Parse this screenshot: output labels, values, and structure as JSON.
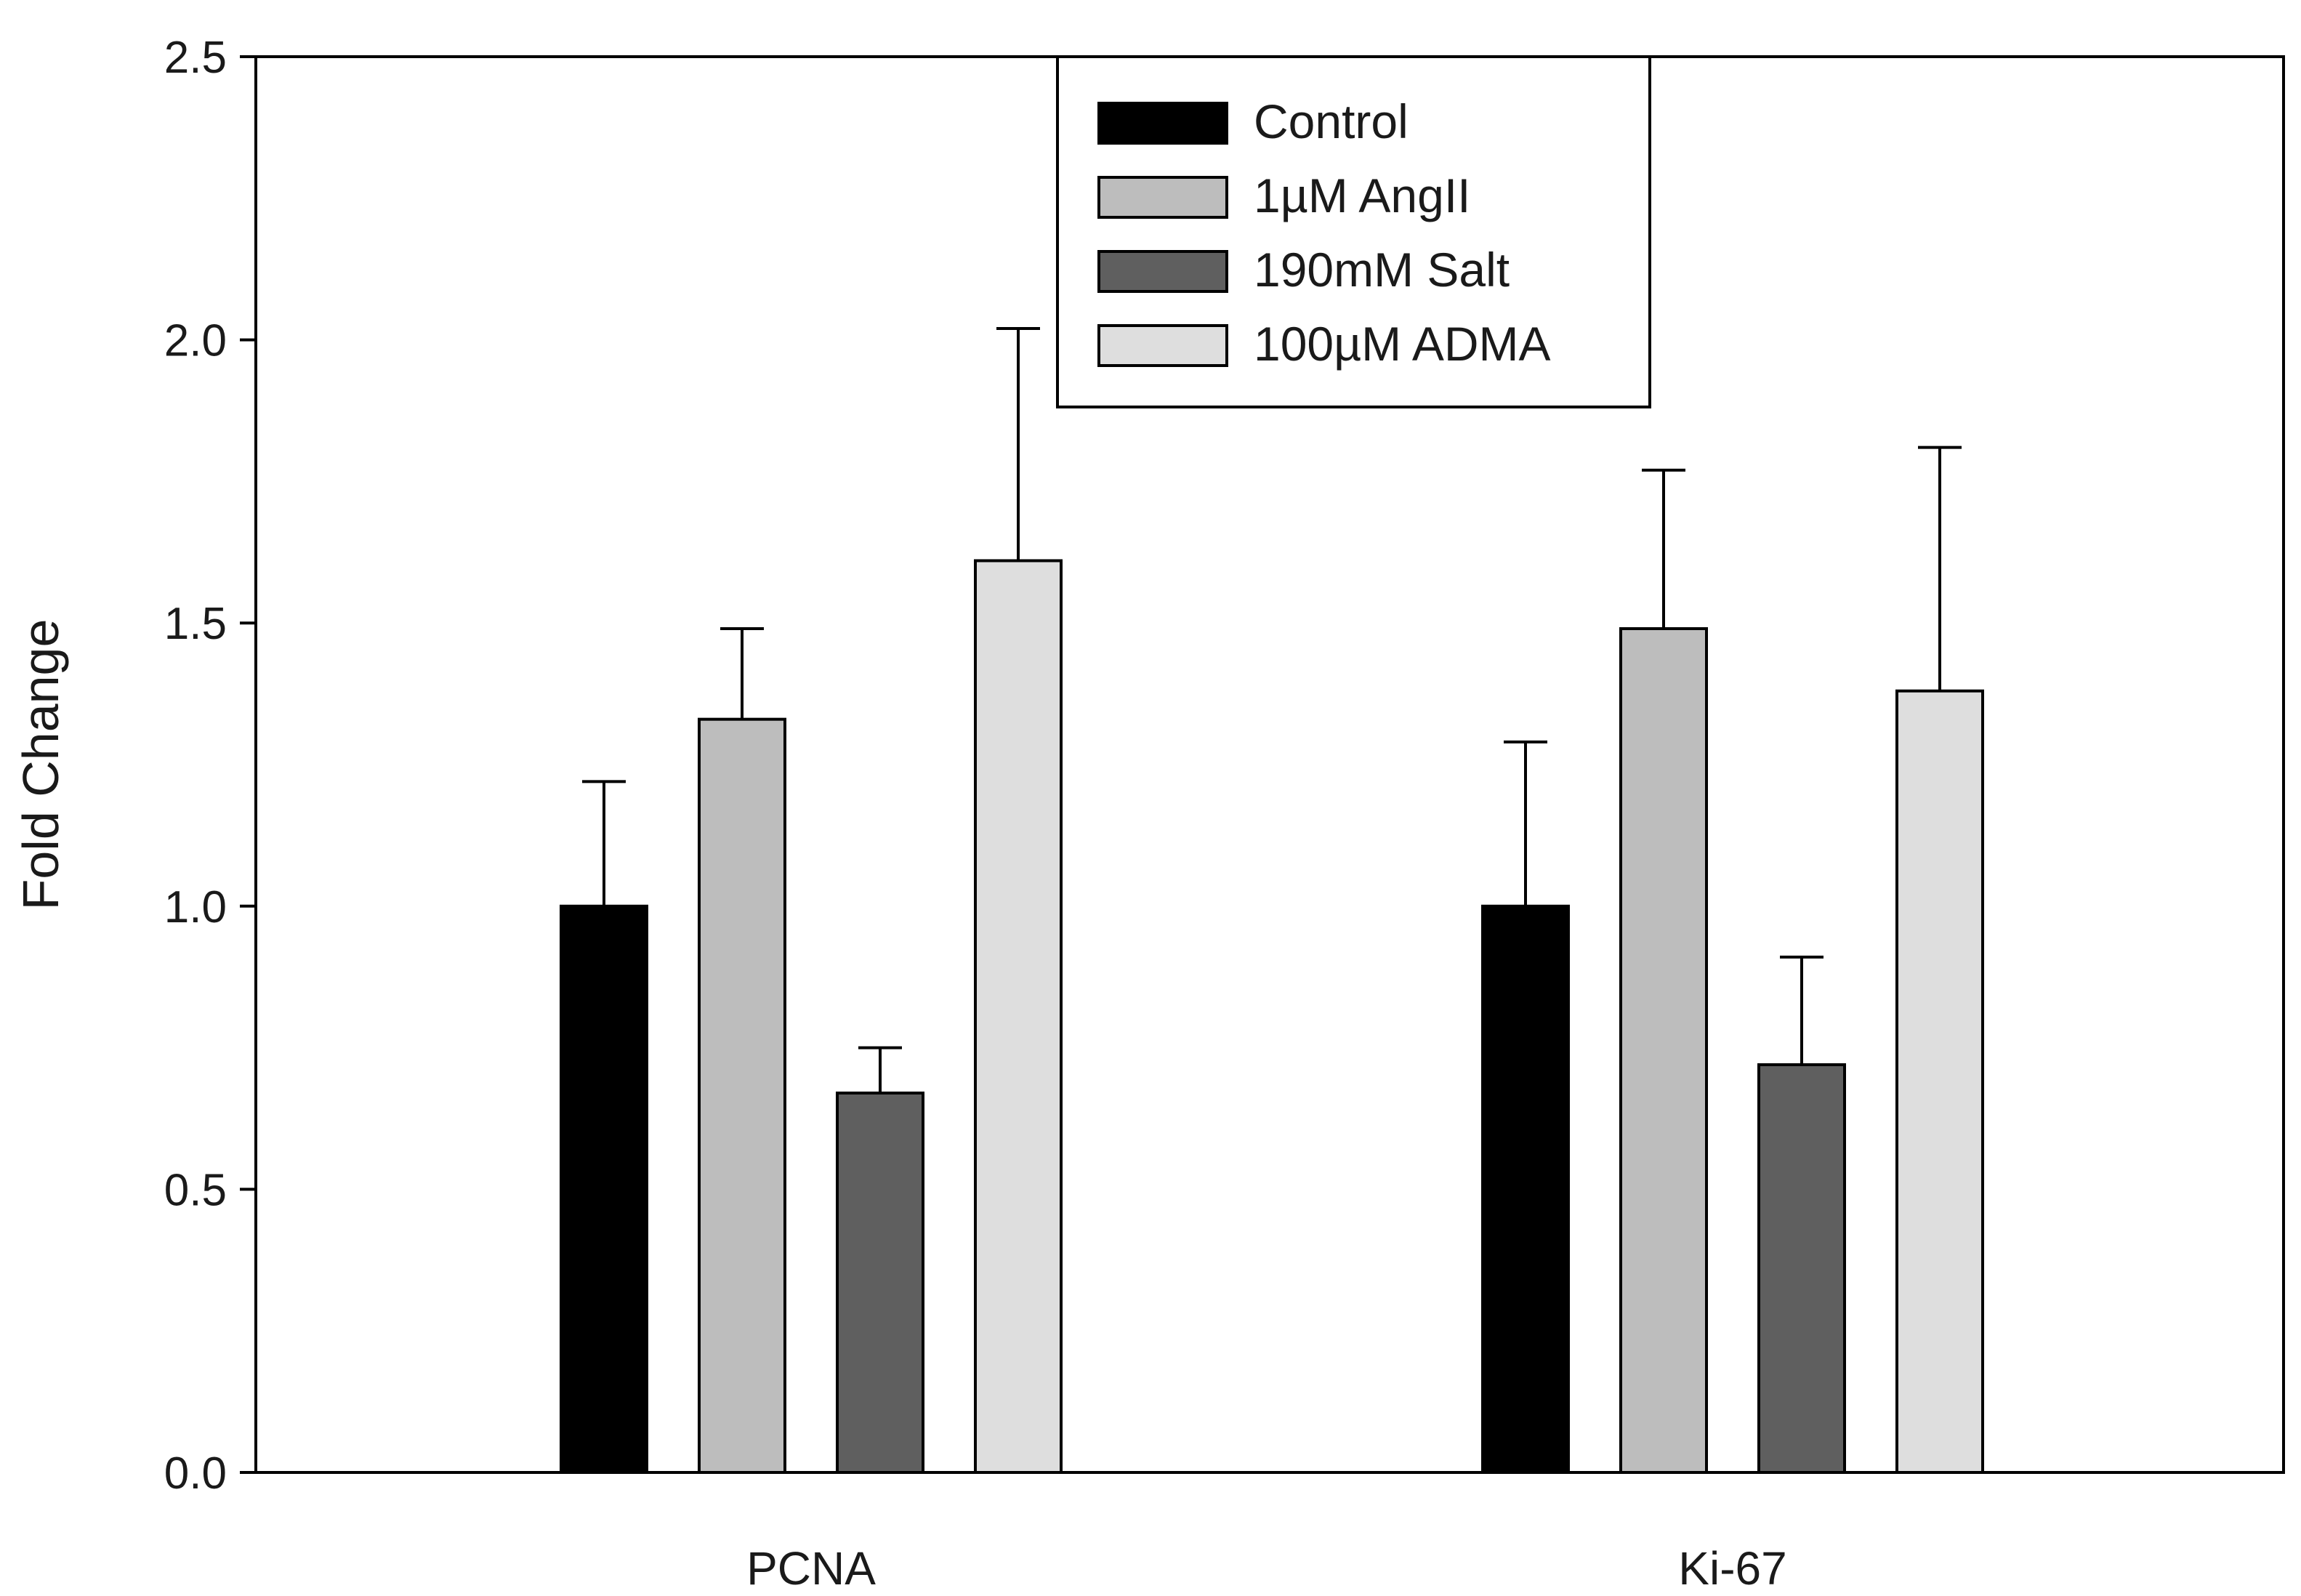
{
  "chart_data": {
    "type": "bar",
    "title": "",
    "xlabel": "",
    "ylabel": "Fold Change",
    "ylim": [
      0,
      2.5
    ],
    "yticks": [
      "0.0",
      "0.5",
      "1.0",
      "1.5",
      "2.0",
      "2.5"
    ],
    "categories": [
      "PCNA",
      "Ki-67"
    ],
    "grid": false,
    "legend_position": "top-center",
    "series": [
      {
        "name": "Control",
        "color": "#000000",
        "values": [
          1.0,
          1.0
        ],
        "errors": [
          0.22,
          0.29
        ]
      },
      {
        "name": "1µM AngII",
        "color": "#bdbdbd",
        "values": [
          1.33,
          1.49
        ],
        "errors": [
          0.16,
          0.28
        ]
      },
      {
        "name": "190mM Salt",
        "color": "#5f5f5f",
        "values": [
          0.67,
          0.72
        ],
        "errors": [
          0.08,
          0.19
        ]
      },
      {
        "name": "100µM ADMA",
        "color": "#dedede",
        "values": [
          1.61,
          1.38
        ],
        "errors": [
          0.41,
          0.43
        ]
      }
    ]
  }
}
